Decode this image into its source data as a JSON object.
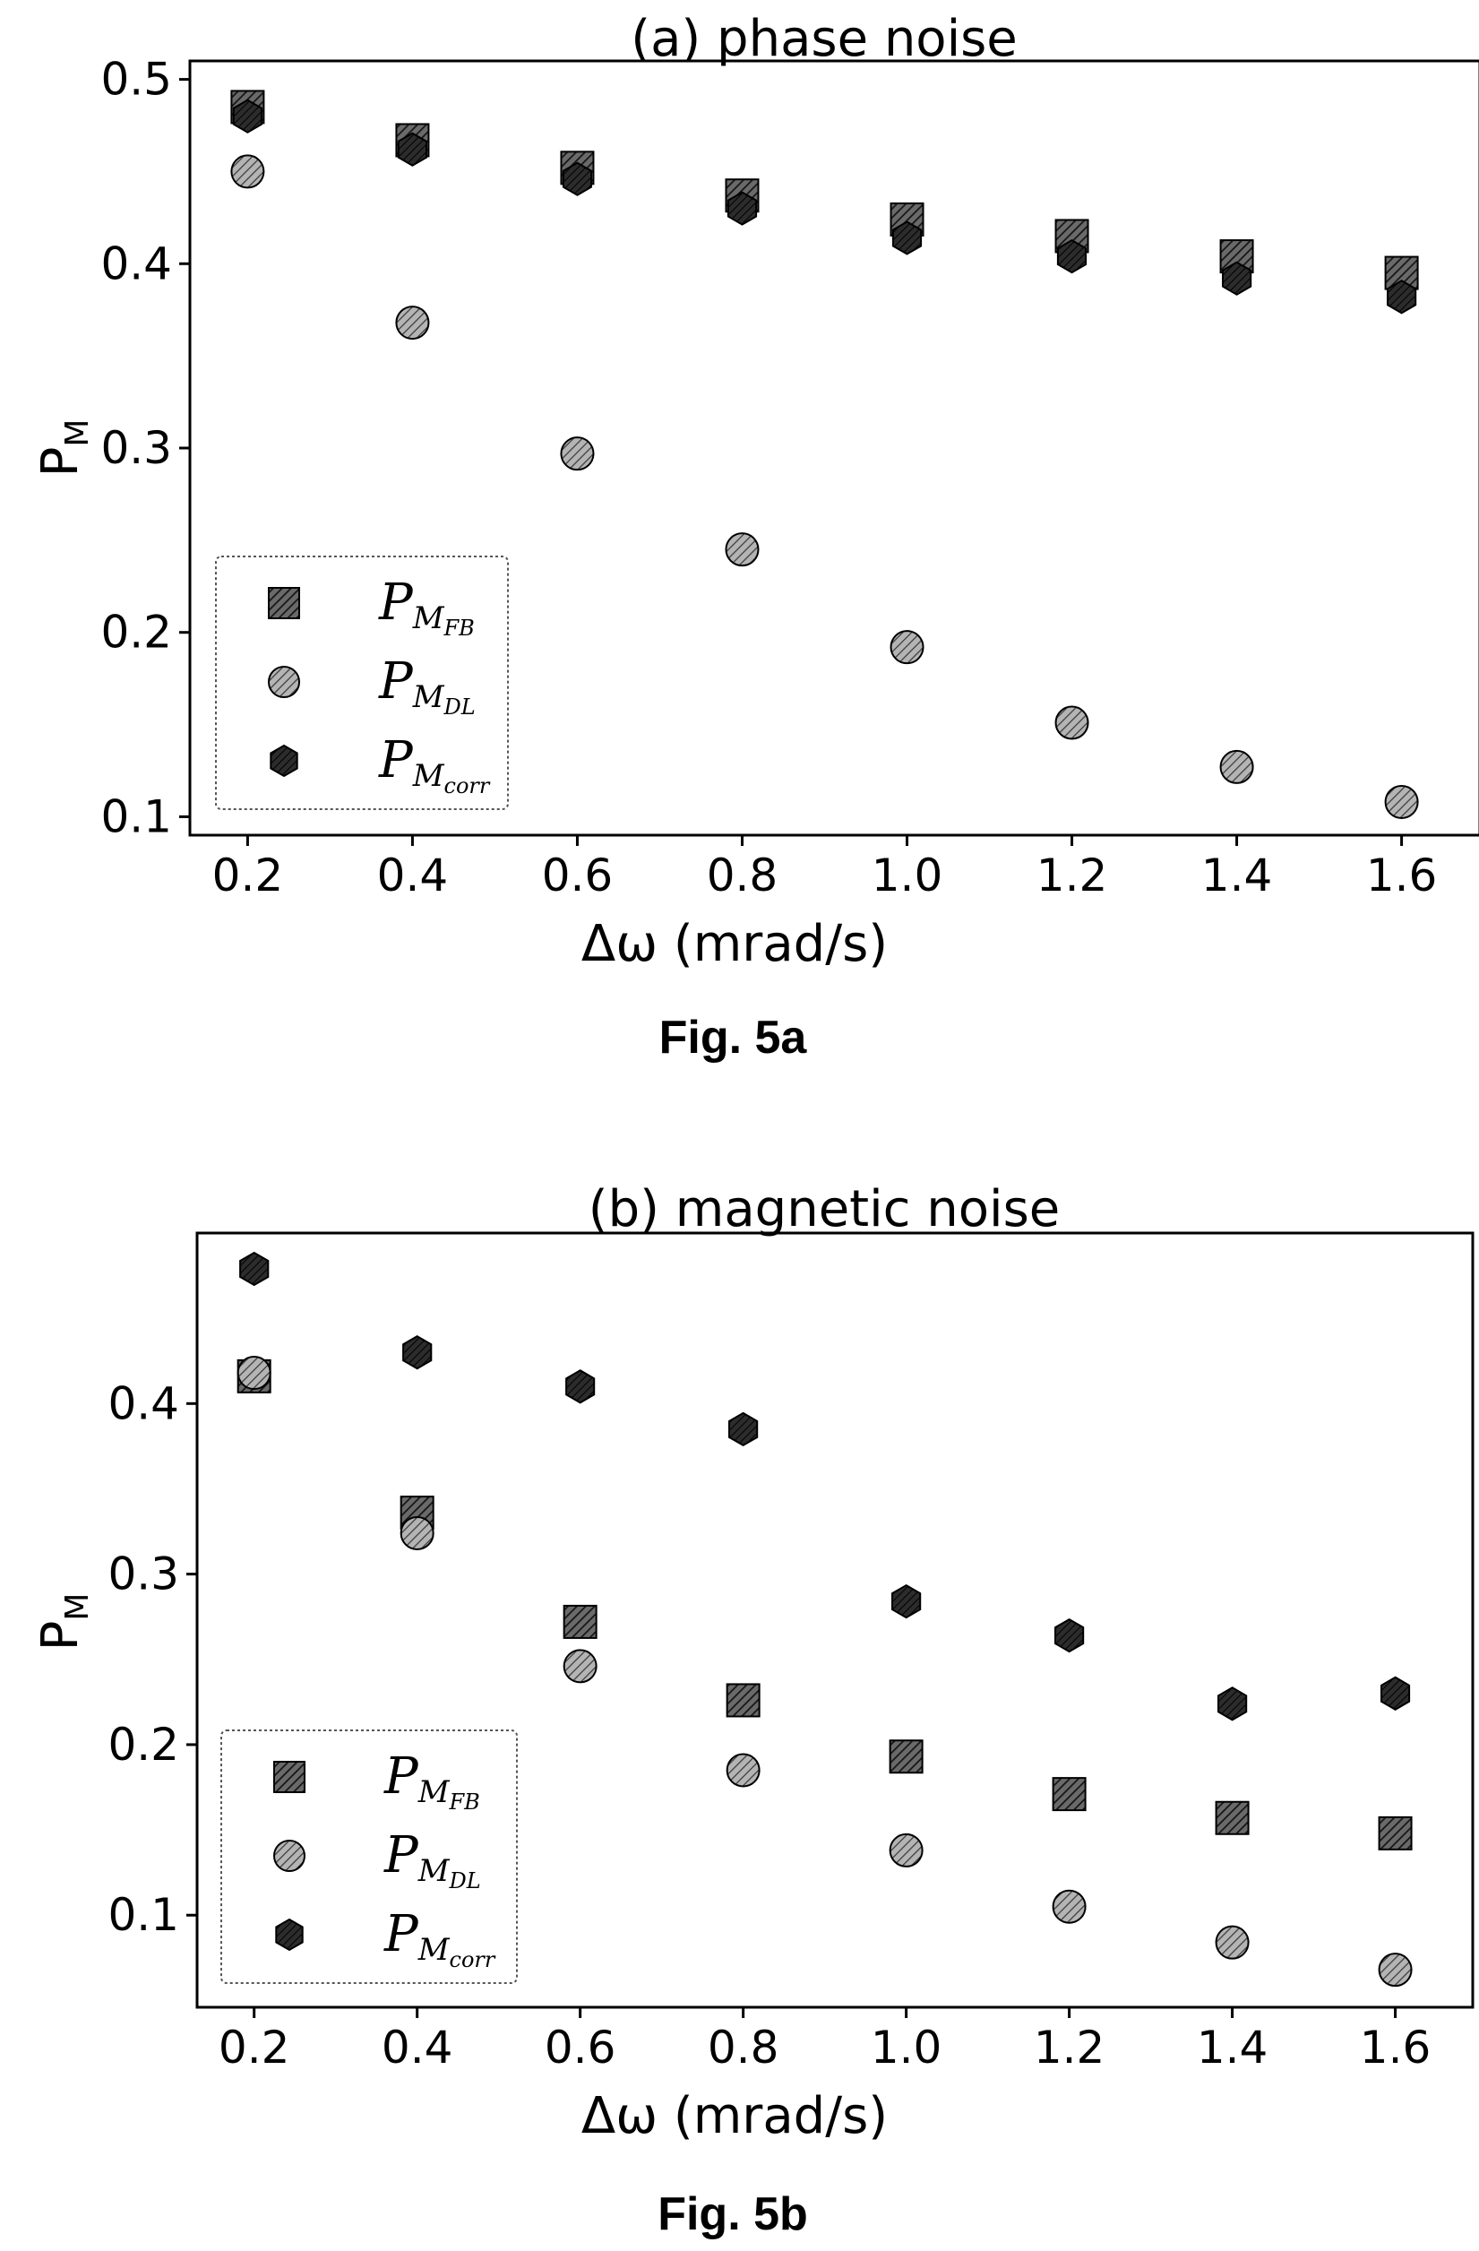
{
  "chart_data": [
    {
      "type": "scatter",
      "title": "(a) phase noise",
      "xlabel": "Δω (mrad/s)",
      "ylabel_main": "P",
      "ylabel_sub": "M",
      "caption": "Fig. 5a",
      "x": [
        0.2,
        0.4,
        0.6,
        0.8,
        1.0,
        1.2,
        1.4,
        1.6
      ],
      "xticks": [
        "0.2",
        "0.4",
        "0.6",
        "0.8",
        "1.0",
        "1.2",
        "1.4",
        "1.6"
      ],
      "yticks": [
        "0.1",
        "0.2",
        "0.3",
        "0.4",
        "0.5"
      ],
      "xlim": [
        0.13,
        1.695
      ],
      "ylim": [
        0.09,
        0.51
      ],
      "legend_position": "lower-left",
      "series": [
        {
          "name": "P_M_FB",
          "main": "P",
          "sub": "M",
          "subsub": "FB",
          "marker": "square",
          "values": [
            0.485,
            0.467,
            0.452,
            0.437,
            0.424,
            0.415,
            0.404,
            0.395
          ]
        },
        {
          "name": "P_M_DL",
          "main": "P",
          "sub": "M",
          "subsub": "DL",
          "marker": "circle",
          "values": [
            0.45,
            0.368,
            0.297,
            0.245,
            0.192,
            0.151,
            0.127,
            0.108
          ]
        },
        {
          "name": "P_M_corr",
          "main": "P",
          "sub": "M",
          "subsub": "corr",
          "marker": "hexagon",
          "values": [
            0.48,
            0.462,
            0.446,
            0.43,
            0.414,
            0.404,
            0.392,
            0.382
          ]
        }
      ],
      "grid": false
    },
    {
      "type": "scatter",
      "title": "(b) magnetic noise",
      "xlabel": "Δω (mrad/s)",
      "ylabel_main": "P",
      "ylabel_sub": "M",
      "caption": "Fig. 5b",
      "x": [
        0.2,
        0.4,
        0.6,
        0.8,
        1.0,
        1.2,
        1.4,
        1.6
      ],
      "xticks": [
        "0.2",
        "0.4",
        "0.6",
        "0.8",
        "1.0",
        "1.2",
        "1.4",
        "1.6"
      ],
      "yticks": [
        "0.1",
        "0.2",
        "0.3",
        "0.4"
      ],
      "xlim": [
        0.13,
        1.695
      ],
      "ylim": [
        0.046,
        0.5
      ],
      "legend_position": "lower-left",
      "series": [
        {
          "name": "P_M_FB",
          "main": "P",
          "sub": "M",
          "subsub": "FB",
          "marker": "square",
          "values": [
            0.416,
            0.336,
            0.272,
            0.226,
            0.193,
            0.171,
            0.157,
            0.148
          ]
        },
        {
          "name": "P_M_DL",
          "main": "P",
          "sub": "M",
          "subsub": "DL",
          "marker": "circle",
          "values": [
            0.418,
            0.324,
            0.246,
            0.185,
            0.138,
            0.105,
            0.084,
            0.068
          ]
        },
        {
          "name": "P_M_corr",
          "main": "P",
          "sub": "M",
          "subsub": "corr",
          "marker": "hexagon",
          "values": [
            0.479,
            0.43,
            0.41,
            0.385,
            0.284,
            0.264,
            0.224,
            0.23
          ]
        }
      ],
      "grid": false
    }
  ],
  "colors": {
    "square": "#444444",
    "circle": "#8a8a8a",
    "hexagon": "#1e1e1e",
    "edge": "#000000"
  }
}
